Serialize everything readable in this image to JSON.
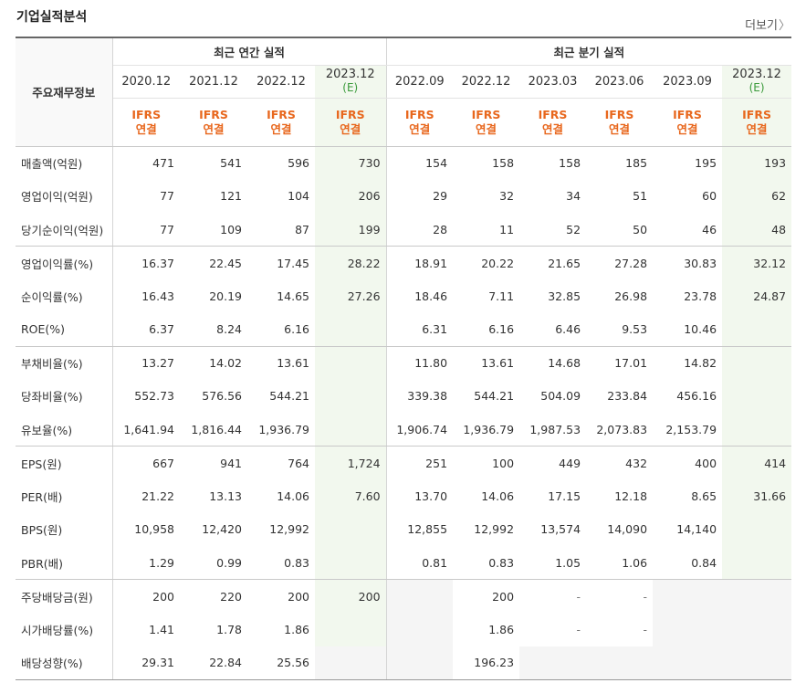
{
  "header": {
    "title": "기업실적분석",
    "more_label": "더보기"
  },
  "table": {
    "row_header_label": "주요재무정보",
    "group_annual": "최근 연간 실적",
    "group_quarter": "최근 분기 실적",
    "periods": [
      "2020.12",
      "2021.12",
      "2022.12",
      "2023.12",
      "2022.09",
      "2022.12",
      "2023.03",
      "2023.06",
      "2023.09",
      "2023.12"
    ],
    "estimate_mark": "(E)",
    "standard_top": "IFRS",
    "standard_bottom": "연결",
    "rows": [
      {
        "label": "매출액(억원)",
        "values": [
          "471",
          "541",
          "596",
          "730",
          "154",
          "158",
          "158",
          "185",
          "195",
          "193"
        ]
      },
      {
        "label": "영업이익(억원)",
        "values": [
          "77",
          "121",
          "104",
          "206",
          "29",
          "32",
          "34",
          "51",
          "60",
          "62"
        ]
      },
      {
        "label": "당기순이익(억원)",
        "values": [
          "77",
          "109",
          "87",
          "199",
          "28",
          "11",
          "52",
          "50",
          "46",
          "48"
        ]
      },
      {
        "label": "영업이익률(%)",
        "values": [
          "16.37",
          "22.45",
          "17.45",
          "28.22",
          "18.91",
          "20.22",
          "21.65",
          "27.28",
          "30.83",
          "32.12"
        ]
      },
      {
        "label": "순이익률(%)",
        "values": [
          "16.43",
          "20.19",
          "14.65",
          "27.26",
          "18.46",
          "7.11",
          "32.85",
          "26.98",
          "23.78",
          "24.87"
        ]
      },
      {
        "label": "ROE(%)",
        "values": [
          "6.37",
          "8.24",
          "6.16",
          "",
          "6.31",
          "6.16",
          "6.46",
          "9.53",
          "10.46",
          ""
        ]
      },
      {
        "label": "부채비율(%)",
        "values": [
          "13.27",
          "14.02",
          "13.61",
          "",
          "11.80",
          "13.61",
          "14.68",
          "17.01",
          "14.82",
          ""
        ]
      },
      {
        "label": "당좌비율(%)",
        "values": [
          "552.73",
          "576.56",
          "544.21",
          "",
          "339.38",
          "544.21",
          "504.09",
          "233.84",
          "456.16",
          ""
        ]
      },
      {
        "label": "유보율(%)",
        "values": [
          "1,641.94",
          "1,816.44",
          "1,936.79",
          "",
          "1,906.74",
          "1,936.79",
          "1,987.53",
          "2,073.83",
          "2,153.79",
          ""
        ]
      },
      {
        "label": "EPS(원)",
        "values": [
          "667",
          "941",
          "764",
          "1,724",
          "251",
          "100",
          "449",
          "432",
          "400",
          "414"
        ]
      },
      {
        "label": "PER(배)",
        "values": [
          "21.22",
          "13.13",
          "14.06",
          "7.60",
          "13.70",
          "14.06",
          "17.15",
          "12.18",
          "8.65",
          "31.66"
        ]
      },
      {
        "label": "BPS(원)",
        "values": [
          "10,958",
          "12,420",
          "12,992",
          "",
          "12,855",
          "12,992",
          "13,574",
          "14,090",
          "14,140",
          ""
        ]
      },
      {
        "label": "PBR(배)",
        "values": [
          "1.29",
          "0.99",
          "0.83",
          "",
          "0.81",
          "0.83",
          "1.05",
          "1.06",
          "0.84",
          ""
        ]
      },
      {
        "label": "주당배당금(원)",
        "values": [
          "200",
          "220",
          "200",
          "200",
          "",
          "200",
          "-",
          "-",
          "",
          ""
        ]
      },
      {
        "label": "시가배당률(%)",
        "values": [
          "1.41",
          "1.78",
          "1.86",
          "",
          "",
          "1.86",
          "-",
          "-",
          "",
          ""
        ]
      },
      {
        "label": "배당성향(%)",
        "values": [
          "29.31",
          "22.84",
          "25.56",
          "",
          "",
          "196.23",
          "",
          "",
          "",
          ""
        ]
      }
    ]
  }
}
